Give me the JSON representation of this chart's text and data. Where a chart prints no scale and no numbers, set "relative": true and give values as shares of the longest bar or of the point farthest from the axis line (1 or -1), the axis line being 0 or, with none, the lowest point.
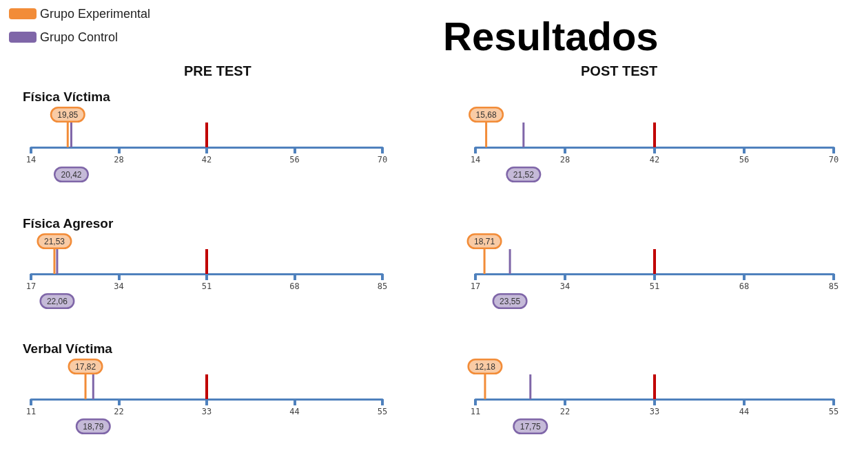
{
  "chart_data": [
    {
      "type": "bar",
      "relative": true,
      "title": "Física Víctima",
      "subtitle": "PRE TEST",
      "legend": "top left",
      "xlim": [
        14,
        70
      ],
      "xticks": [
        14,
        28,
        42,
        56,
        70
      ],
      "series": [
        {
          "name": "Grupo Experimental",
          "color": "#f28c38",
          "x": [
            19.85
          ],
          "values": [
            1
          ]
        },
        {
          "name": "Grupo Control",
          "color": "#7f66a8",
          "x": [
            20.42
          ],
          "values": [
            1
          ]
        }
      ],
      "annotations": [
        {
          "text": "19,85",
          "x": 19.85,
          "y": 1
        },
        {
          "text": "20,42",
          "x": 20.42,
          "y": 0
        }
      ],
      "ref_lines": [
        {
          "axis": "x",
          "value": 42,
          "color": "#c00000"
        }
      ]
    },
    {
      "type": "bar",
      "relative": true,
      "subtitle": "POST TEST",
      "xlim": [
        14,
        70
      ],
      "xticks": [
        14,
        28,
        42,
        56,
        70
      ],
      "series": [
        {
          "color": "#f28c38",
          "x": [
            15.68
          ],
          "values": [
            1
          ]
        },
        {
          "color": "#7f66a8",
          "x": [
            21.52
          ],
          "values": [
            1
          ]
        }
      ],
      "annotations": [
        "Resultados",
        {
          "text": "15,68",
          "x": 15.68,
          "y": 1
        },
        {
          "text": "21,52",
          "x": 21.52,
          "y": 0
        }
      ],
      "ref_lines": [
        {
          "axis": "x",
          "value": 42,
          "color": "#c00000"
        }
      ]
    },
    {
      "type": "bar",
      "relative": true,
      "title": "Física Agresor",
      "xlim": [
        17,
        85
      ],
      "xticks": [
        17,
        34,
        51,
        68,
        85
      ],
      "series": [
        {
          "color": "#f28c38",
          "x": [
            21.53
          ],
          "values": [
            1
          ]
        },
        {
          "color": "#7f66a8",
          "x": [
            22.06
          ],
          "values": [
            1
          ]
        }
      ],
      "annotations": [
        {
          "text": "21,53",
          "x": 21.53,
          "y": 1
        },
        {
          "text": "22,06",
          "x": 22.06,
          "y": 0
        }
      ],
      "ref_lines": [
        {
          "axis": "x",
          "value": 51,
          "color": "#c00000"
        }
      ]
    },
    {
      "type": "bar",
      "relative": true,
      "xlim": [
        17,
        85
      ],
      "xticks": [
        17,
        34,
        51,
        68,
        85
      ],
      "series": [
        {
          "color": "#f28c38",
          "x": [
            18.71
          ],
          "values": [
            1
          ]
        },
        {
          "color": "#7f66a8",
          "x": [
            23.55
          ],
          "values": [
            1
          ]
        }
      ],
      "annotations": [
        {
          "text": "18,71",
          "x": 18.71,
          "y": 1
        },
        {
          "text": "23,55",
          "x": 23.55,
          "y": 0
        }
      ],
      "ref_lines": [
        {
          "axis": "x",
          "value": 51,
          "color": "#c00000"
        }
      ]
    },
    {
      "type": "bar",
      "relative": true,
      "title": "Verbal Víctima",
      "xlim": [
        11,
        55
      ],
      "xticks": [
        11,
        22,
        33,
        44,
        55
      ],
      "series": [
        {
          "color": "#f28c38",
          "x": [
            17.82
          ],
          "values": [
            1
          ]
        },
        {
          "color": "#7f66a8",
          "x": [
            18.79
          ],
          "values": [
            1
          ]
        }
      ],
      "annotations": [
        {
          "text": "17,82",
          "x": 17.82,
          "y": 1
        },
        {
          "text": "18,79",
          "x": 18.79,
          "y": 0
        }
      ],
      "ref_lines": [
        {
          "axis": "x",
          "value": 33,
          "color": "#c00000"
        }
      ]
    },
    {
      "type": "bar",
      "relative": true,
      "xlim": [
        11,
        55
      ],
      "xticks": [
        11,
        22,
        33,
        44,
        55
      ],
      "series": [
        {
          "color": "#f28c38",
          "x": [
            12.18
          ],
          "values": [
            1
          ]
        },
        {
          "color": "#7f66a8",
          "x": [
            17.75
          ],
          "values": [
            1
          ]
        }
      ],
      "annotations": [
        {
          "text": "12,18",
          "x": 12.18,
          "y": 1
        },
        {
          "text": "17,75",
          "x": 17.75,
          "y": 0
        }
      ],
      "ref_lines": [
        {
          "axis": "x",
          "value": 33,
          "color": "#c00000"
        }
      ]
    }
  ]
}
